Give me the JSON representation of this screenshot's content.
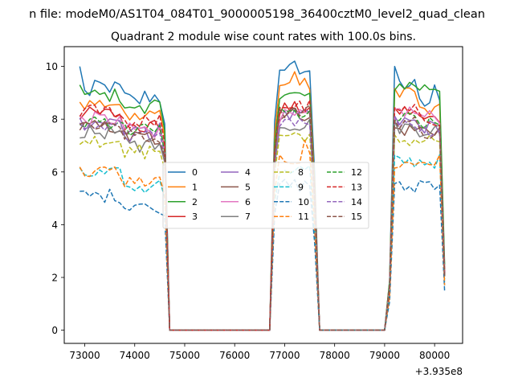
{
  "chart_data": {
    "type": "line",
    "suptitle": "n file: modeM0/AS1T04_084T01_9000005198_36400cztM0_level2_quad_clean",
    "title": "Quadrant 2 module wise count rates with 100.0s bins.",
    "xlabel": "",
    "ylabel": "",
    "x_offset_label": "+3.935e8",
    "xlim": [
      72590,
      80560
    ],
    "ylim": [
      -0.5,
      10.75
    ],
    "x_ticks": [
      73000,
      74000,
      75000,
      76000,
      77000,
      78000,
      79000,
      80000
    ],
    "x_tick_labels": [
      "73000",
      "74000",
      "75000",
      "76000",
      "77000",
      "78000",
      "79000",
      "80000"
    ],
    "y_ticks": [
      0,
      2,
      4,
      6,
      8,
      10
    ],
    "y_tick_labels": [
      "0",
      "2",
      "4",
      "6",
      "8",
      "10"
    ],
    "grid": false,
    "legend_placement": "center",
    "legend_columns": 4,
    "segments": [
      {
        "x_start": 72900,
        "x_end": 74600,
        "step": 100
      },
      {
        "x_start": 74700,
        "x_end": 76700,
        "step": 100
      },
      {
        "x_start": 76800,
        "x_end": 77600,
        "step": 100
      },
      {
        "x_start": 77700,
        "x_end": 79000,
        "step": 100
      },
      {
        "x_start": 79100,
        "x_end": 80200,
        "step": 100
      }
    ],
    "series": [
      {
        "name": "0",
        "color": "#1f77b4",
        "dash": "solid",
        "levels": [
          9.2,
          9.9,
          9.3,
          8.3
        ],
        "peaks": [
          [
            72900,
            10.0
          ],
          [
            73100,
            8.9
          ],
          [
            73300,
            9.4
          ],
          [
            77200,
            10.2
          ],
          [
            79200,
            10.0
          ],
          [
            80000,
            9.3
          ]
        ]
      },
      {
        "name": "1",
        "color": "#ff7f0e",
        "dash": "solid",
        "levels": [
          8.6,
          9.3,
          9.1,
          8.0
        ],
        "peaks": [
          [
            77200,
            9.8
          ]
        ]
      },
      {
        "name": "2",
        "color": "#2ca02c",
        "dash": "solid",
        "levels": [
          8.9,
          8.9,
          9.3,
          8.9
        ],
        "peaks": [
          [
            72900,
            9.3
          ]
        ]
      },
      {
        "name": "3",
        "color": "#d62728",
        "dash": "solid",
        "levels": [
          8.2,
          8.4,
          8.3,
          7.7
        ],
        "peaks": []
      },
      {
        "name": "4",
        "color": "#9467bd",
        "dash": "solid",
        "levels": [
          7.9,
          8.1,
          7.9,
          7.4
        ],
        "peaks": []
      },
      {
        "name": "5",
        "color": "#8c564b",
        "dash": "solid",
        "levels": [
          7.7,
          8.2,
          7.6,
          7.3
        ],
        "peaks": []
      },
      {
        "name": "6",
        "color": "#e377c2",
        "dash": "solid",
        "levels": [
          8.0,
          8.1,
          8.3,
          7.8
        ],
        "peaks": []
      },
      {
        "name": "7",
        "color": "#7f7f7f",
        "dash": "solid",
        "levels": [
          7.5,
          7.8,
          7.7,
          7.3
        ],
        "peaks": []
      },
      {
        "name": "8",
        "color": "#bcbd22",
        "dash": "dashed",
        "levels": [
          7.2,
          7.4,
          7.2,
          6.9
        ],
        "peaks": []
      },
      {
        "name": "9",
        "color": "#17becf",
        "dash": "dashed",
        "levels": [
          5.9,
          6.1,
          6.4,
          6.1
        ],
        "peaks": []
      },
      {
        "name": "10",
        "color": "#1f77b4",
        "dash": "dashed",
        "levels": [
          5.1,
          5.5,
          5.4,
          5.3
        ],
        "peaks": []
      },
      {
        "name": "11",
        "color": "#ff7f0e",
        "dash": "dashed",
        "levels": [
          6.0,
          6.5,
          6.3,
          6.1
        ],
        "peaks": [
          [
            77400,
            7.2
          ]
        ]
      },
      {
        "name": "12",
        "color": "#2ca02c",
        "dash": "dashed",
        "levels": [
          7.9,
          8.2,
          8.0,
          7.5
        ],
        "peaks": []
      },
      {
        "name": "13",
        "color": "#d62728",
        "dash": "dashed",
        "levels": [
          8.3,
          8.5,
          8.3,
          7.7
        ],
        "peaks": []
      },
      {
        "name": "14",
        "color": "#9467bd",
        "dash": "dashed",
        "levels": [
          7.7,
          8.0,
          7.9,
          7.3
        ],
        "peaks": []
      },
      {
        "name": "15",
        "color": "#8c564b",
        "dash": "dashed",
        "levels": [
          7.8,
          8.3,
          7.9,
          7.2
        ],
        "peaks": []
      }
    ]
  }
}
